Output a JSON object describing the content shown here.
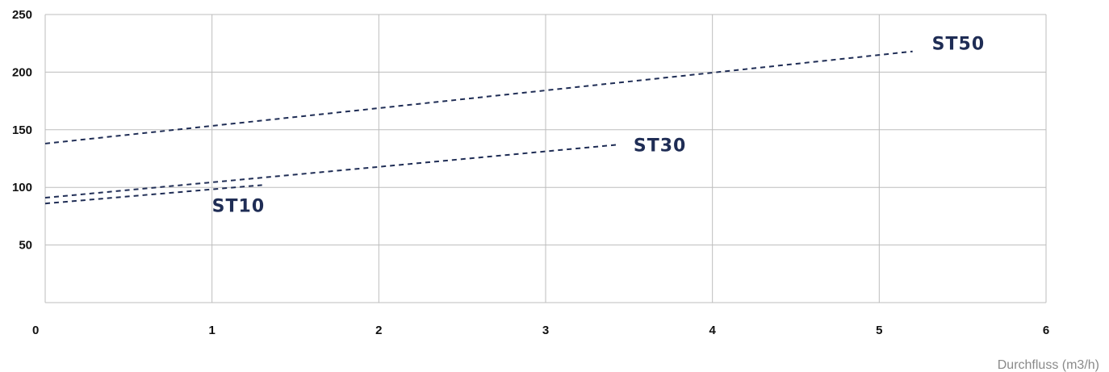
{
  "chart_data": {
    "type": "line",
    "title": "",
    "xlabel": "Durchfluss (m3/h)",
    "ylabel": "",
    "xlim": [
      0,
      6
    ],
    "ylim": [
      0,
      250
    ],
    "xticks": [
      "0",
      "1",
      "2",
      "3",
      "4",
      "5",
      "6"
    ],
    "yticks": [
      "50",
      "100",
      "150",
      "200",
      "250"
    ],
    "grid": true,
    "line_color": "#1f2d55",
    "series": [
      {
        "name": "ST10",
        "style": "dashed",
        "x": [
          0,
          1.3
        ],
        "y": [
          86,
          102
        ]
      },
      {
        "name": "ST30",
        "style": "dashed",
        "x": [
          0,
          3.43
        ],
        "y": [
          91,
          137
        ]
      },
      {
        "name": "ST50",
        "style": "dashed",
        "x": [
          0,
          5.2
        ],
        "y": [
          138,
          218
        ]
      }
    ]
  }
}
